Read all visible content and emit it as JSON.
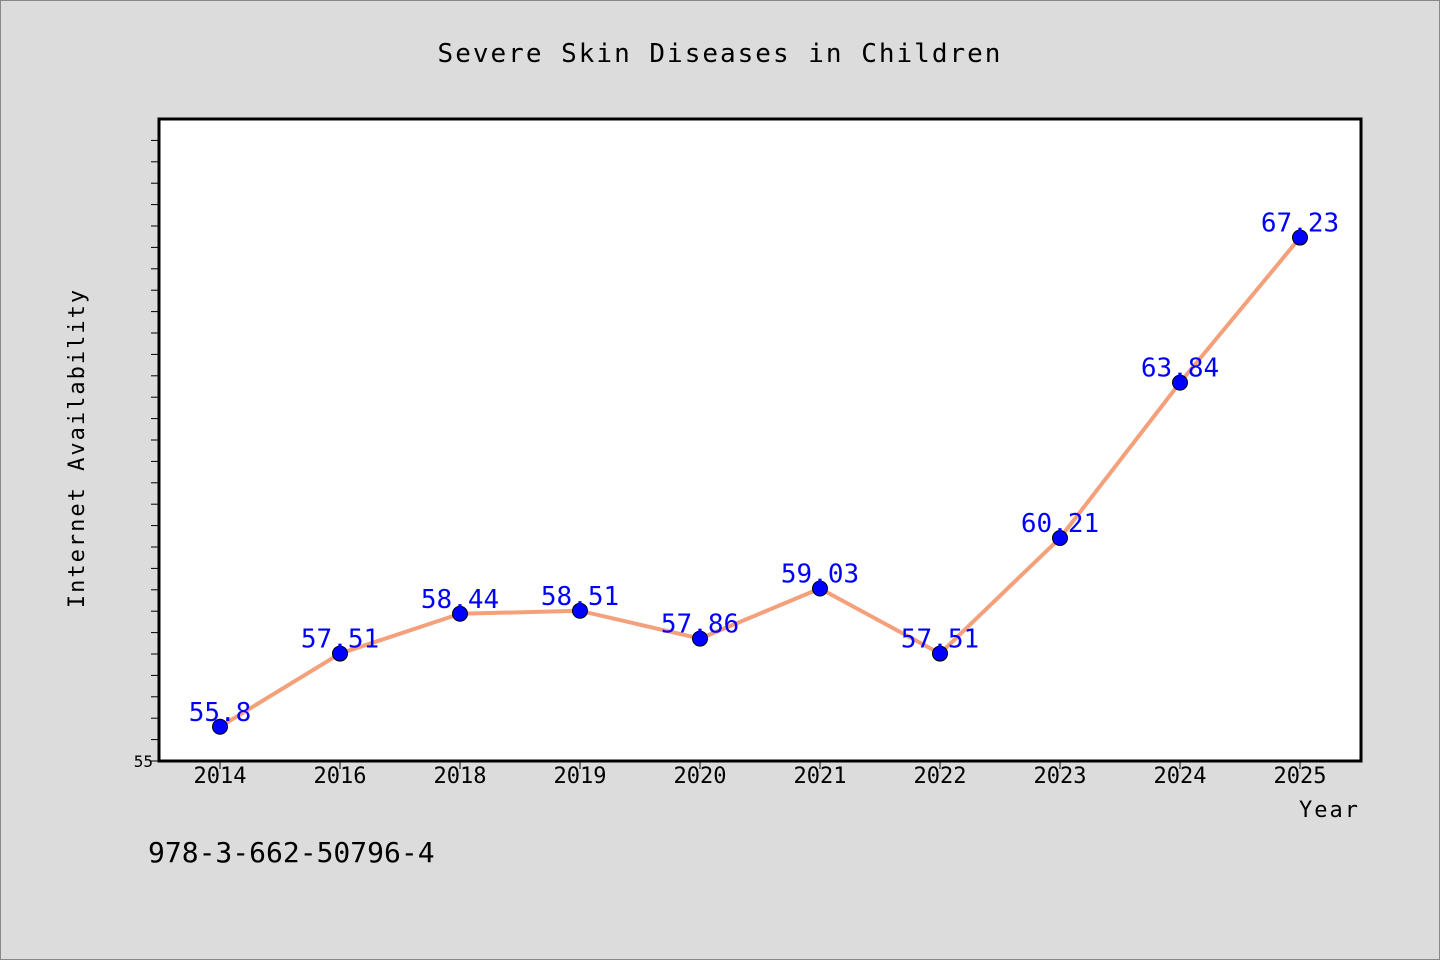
{
  "chart_data": {
    "type": "line",
    "title": "Severe Skin Diseases in Children",
    "xlabel": "Year",
    "ylabel": "Internet Availability",
    "categories": [
      "2014",
      "2016",
      "2018",
      "2019",
      "2020",
      "2021",
      "2022",
      "2023",
      "2024",
      "2025"
    ],
    "series": [
      {
        "values": [
          55.8,
          57.51,
          58.44,
          58.51,
          57.86,
          59.03,
          57.51,
          60.21,
          63.84,
          67.23
        ],
        "labels": [
          "55.8",
          "57.51",
          "58.44",
          "58.51",
          "57.86",
          "59.03",
          "57.51",
          "60.21",
          "63.84",
          "67.23"
        ]
      }
    ],
    "ylim": [
      55,
      70
    ],
    "y_tick_labels": [
      "55"
    ],
    "grid": false,
    "colors": {
      "line": "#f4a07a",
      "marker": "#0000ff",
      "label": "#0000ff",
      "background": "#dcdcdc",
      "plot_background": "#ffffff"
    }
  },
  "footer": {
    "isbn": "978-3-662-50796-4"
  }
}
